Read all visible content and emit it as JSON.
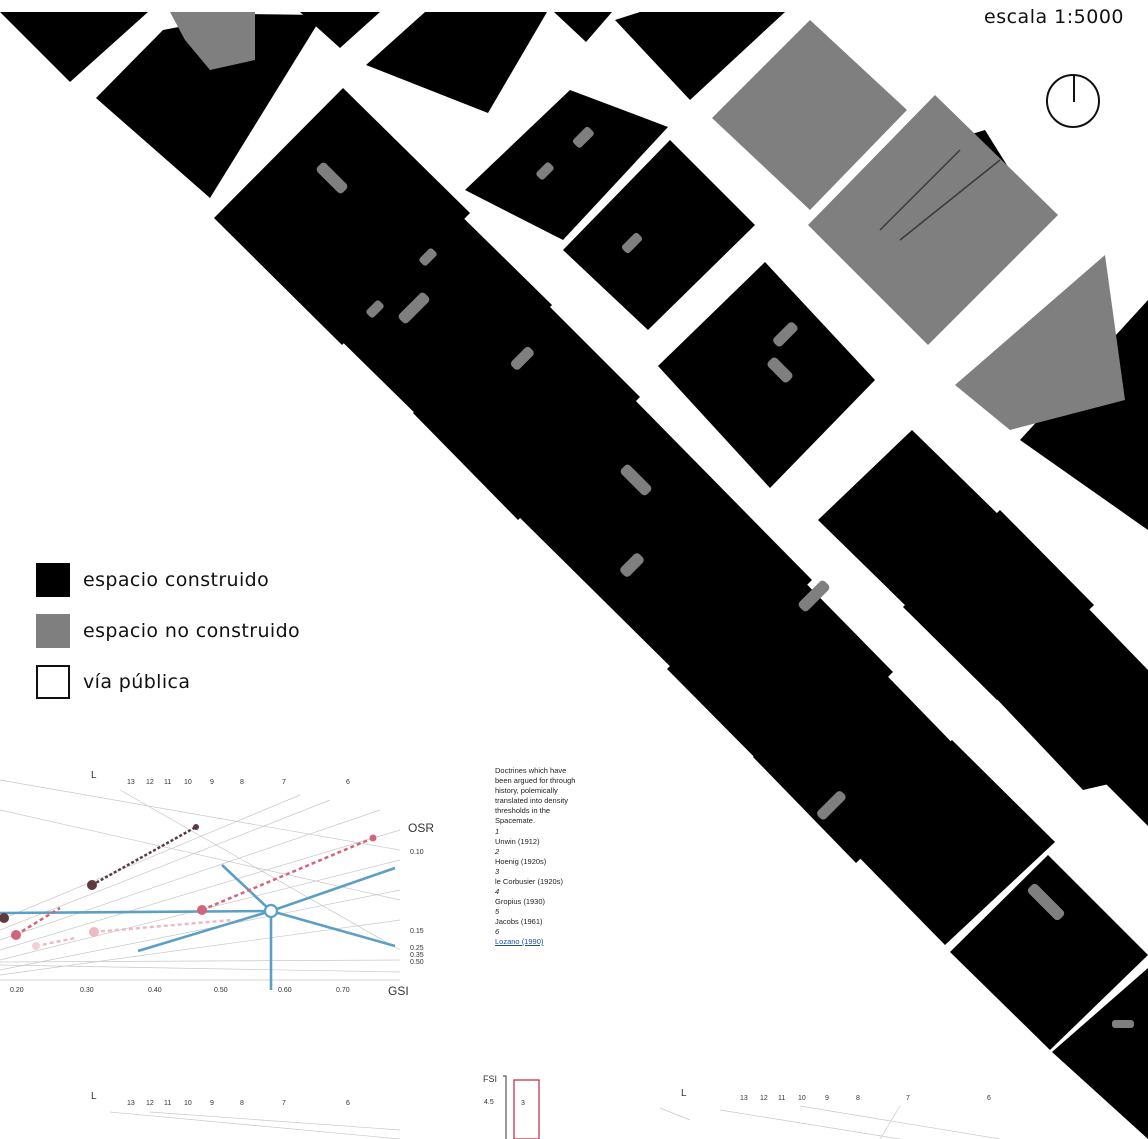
{
  "map": {
    "scale_label": "escala 1:5000",
    "north_arrow_icon": "north-arrow-icon",
    "colors": {
      "built": "#000000",
      "unbuilt": "#7f7f7f",
      "street": "#ffffff",
      "chart_blue": "#5b9fc7",
      "chart_pink": "#d2657a",
      "chart_dark": "#5e3a3f"
    }
  },
  "legend": {
    "items": [
      {
        "label": "espacio construido",
        "color": "#000000"
      },
      {
        "label": "espacio no construido",
        "color": "#7f7f7f"
      },
      {
        "label": "vía pública",
        "color": "#ffffff"
      }
    ]
  },
  "spacemate_panel": {
    "chart_top": {
      "l_label": "L",
      "l_values": [
        "13",
        "12",
        "11",
        "10",
        "9",
        "8",
        "7",
        "6"
      ],
      "osr_label": "OSR",
      "osr_values": [
        "0.10",
        "0.15",
        "0.25",
        "0.35",
        "0.50"
      ],
      "gsi_label": "GSI",
      "gsi_values": [
        "0.20",
        "0.30",
        "0.40",
        "0.50",
        "0.60",
        "0.70"
      ]
    },
    "chart_bottom_left": {
      "l_label": "L",
      "l_values": [
        "13",
        "12",
        "11",
        "10",
        "9",
        "8",
        "7",
        "6"
      ]
    },
    "chart_fsi": {
      "fsi_label": "FSI",
      "fsi_value": "4.5",
      "box_value": "3"
    },
    "chart_bottom_right": {
      "l_label": "L",
      "l_values": [
        "13",
        "12",
        "11",
        "10",
        "9",
        "8",
        "7",
        "6"
      ]
    },
    "doctrines": {
      "intro": "Doctrines which have been argued for through history, polemically translated into density thresholds in the Spacemate.",
      "items": [
        {
          "num": "1",
          "name": "Unwin (1912)"
        },
        {
          "num": "2",
          "name": "Hoenig (1920s)"
        },
        {
          "num": "3",
          "name": "le Corbusier (1920s)"
        },
        {
          "num": "4",
          "name": "Gropius (1930)"
        },
        {
          "num": "5",
          "name": "Jacobs (1961)"
        },
        {
          "num": "6",
          "name": "Lozano (1990)"
        }
      ]
    }
  }
}
